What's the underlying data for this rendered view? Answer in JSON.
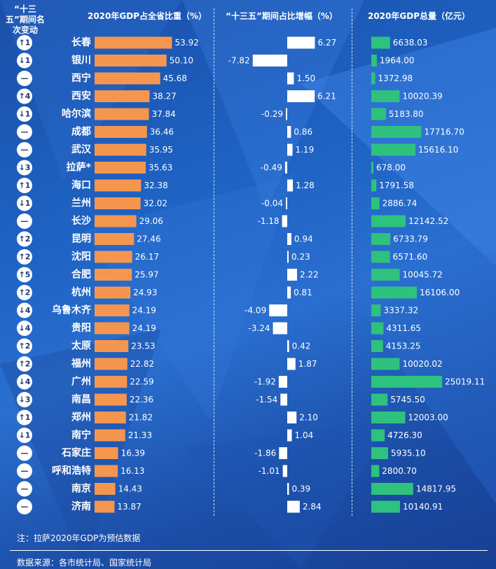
{
  "headers": {
    "rank": "“十三五”期间名次变动",
    "share": "2020年GDP占全省比重（%）",
    "delta": "“十三五”期间占比增幅（%）",
    "gdp": "2020年GDP总量（亿元）"
  },
  "note": "注：拉萨2020年GDP为预估数据",
  "source": "数据来源：各市统计局、国家统计局",
  "colors": {
    "share": "#f5964f",
    "delta": "#ffffff",
    "gdp": "#2ec27e"
  },
  "chart_data": {
    "type": "bar",
    "categories": [
      "长春",
      "银川",
      "西宁",
      "西安",
      "哈尔滨",
      "成都",
      "武汉",
      "拉萨*",
      "海口",
      "兰州",
      "长沙",
      "昆明",
      "沈阳",
      "合肥",
      "杭州",
      "乌鲁木齐",
      "贵阳",
      "太原",
      "福州",
      "广州",
      "南昌",
      "郑州",
      "南宁",
      "石家庄",
      "呼和浩特",
      "南京",
      "济南"
    ],
    "rank_change": [
      "↑1",
      "↓1",
      "—",
      "↑4",
      "↓1",
      "—",
      "—",
      "↓3",
      "↑1",
      "↓1",
      "—",
      "↑2",
      "↑2",
      "↑5",
      "↑2",
      "↓4",
      "↓4",
      "↑2",
      "↑2",
      "↓4",
      "↓3",
      "↑1",
      "↓1",
      "—",
      "—",
      "—",
      "—"
    ],
    "series": [
      {
        "name": "2020年GDP占全省比重（%）",
        "values": [
          53.92,
          50.1,
          45.68,
          38.27,
          37.84,
          36.46,
          35.95,
          35.63,
          32.38,
          32.02,
          29.06,
          27.46,
          26.17,
          25.97,
          24.93,
          24.19,
          24.19,
          23.53,
          22.82,
          22.59,
          22.36,
          21.82,
          21.33,
          16.39,
          16.13,
          14.43,
          13.87
        ]
      },
      {
        "name": "“十三五”期间占比增幅（%）",
        "values": [
          6.27,
          -7.82,
          1.5,
          6.21,
          -0.29,
          0.86,
          1.19,
          -0.49,
          1.28,
          -0.04,
          -1.18,
          0.94,
          0.23,
          2.22,
          0.81,
          -4.09,
          -3.24,
          0.42,
          1.87,
          -1.92,
          -1.54,
          2.1,
          1.04,
          -1.86,
          -1.01,
          0.39,
          2.84
        ]
      },
      {
        "name": "2020年GDP总量（亿元）",
        "values": [
          6638.03,
          1964.0,
          1372.98,
          10020.39,
          5183.8,
          17716.7,
          15616.1,
          678.0,
          1791.58,
          2886.74,
          12142.52,
          6733.79,
          6571.6,
          10045.72,
          16106.0,
          3337.32,
          4311.65,
          4153.25,
          10020.02,
          25019.11,
          5745.5,
          12003.0,
          4726.3,
          5935.1,
          2800.7,
          14817.95,
          10140.91
        ]
      }
    ]
  }
}
